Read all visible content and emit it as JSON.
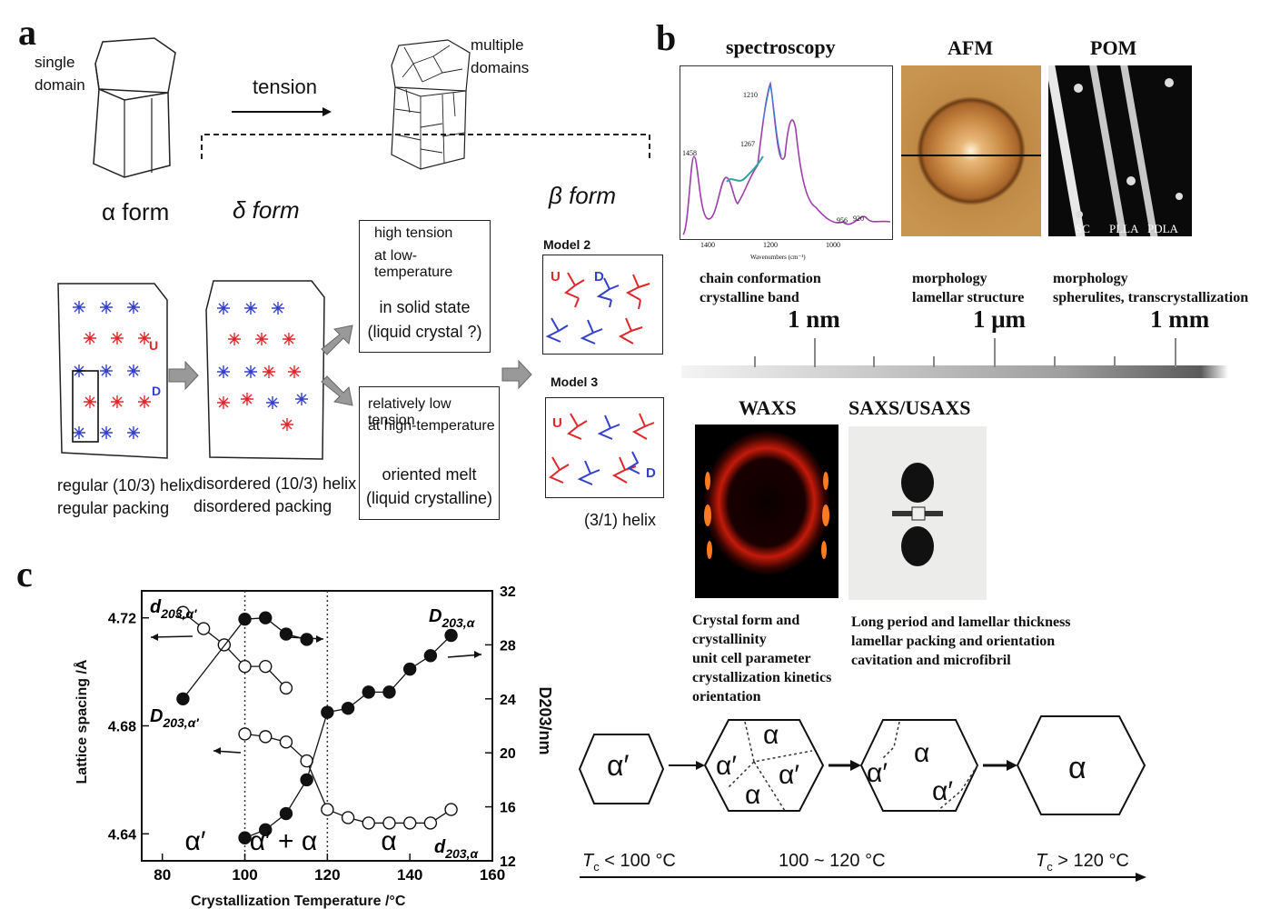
{
  "panel_a": {
    "letter": "a",
    "single_domain": [
      "single",
      "domain"
    ],
    "multiple_domains": [
      "multiple",
      "domains"
    ],
    "tension": "tension",
    "alpha_form": "α form",
    "delta_form": "δ form",
    "beta_form": "β form",
    "high_tension": {
      "line1": "high tension",
      "line2": "at low-temperature",
      "line3": "in solid state",
      "line4": "(liquid crystal ?)"
    },
    "low_tension": {
      "line1": "relatively low tension",
      "line2": "at high-temperature",
      "line3": "oriented melt",
      "line4": "(liquid crystalline)"
    },
    "model2": "Model 2",
    "model3": "Model 3",
    "label_U": "U",
    "label_D": "D",
    "regular": {
      "line1": "regular (10/3) helix",
      "line2": "regular packing"
    },
    "disordered": {
      "line1": "disordered (10/3) helix",
      "line2": "disordered packing"
    },
    "helix31": "(3/1) helix",
    "colors": {
      "red": "#e0262b",
      "blue": "#3340c8"
    }
  },
  "panel_b": {
    "letter": "b",
    "spectroscopy": "spectroscopy",
    "afm": "AFM",
    "pom": "POM",
    "spectrum_peaks": [
      "1458",
      "1210",
      "1267",
      "956",
      "920"
    ],
    "spectrum_ticks": [
      "1400",
      "1200",
      "1000"
    ],
    "spectrum_xlabel": "Wavenumbers (cm⁻¹)",
    "pom_labels": [
      "SC",
      "PLLA",
      "PDLA"
    ],
    "spec_desc": [
      "chain conformation",
      "crystalline band"
    ],
    "afm_desc": [
      "morphology",
      "lamellar structure"
    ],
    "pom_desc": [
      "morphology",
      "spherulites, transcrystallization"
    ],
    "scale": [
      "1 nm",
      "1 μm",
      "1 mm"
    ],
    "waxs": "WAXS",
    "saxs": "SAXS/USAXS",
    "waxs_desc": [
      "Crystal form and",
      "crystallinity",
      "unit cell parameter",
      "crystallization kinetics",
      "orientation"
    ],
    "saxs_desc": [
      "Long period and lamellar thickness",
      "lamellar packing and orientation",
      "cavitation and microfibril"
    ],
    "hex_labels": {
      "h1": "α′",
      "h2a": "α",
      "h2b": "α′",
      "h2c": "α′",
      "h2d": "α",
      "h3a": "α",
      "h3b": "α′",
      "h3c": "α′",
      "h4": "α"
    },
    "temp_left": "T꜀ < 100 °C",
    "temp_left_parts": [
      "T",
      "c",
      " < 100 °C"
    ],
    "temp_mid": "100 ~ 120 °C",
    "temp_right_parts": [
      "T",
      "c",
      " > 120 °C"
    ]
  },
  "panel_c": {
    "letter": "c",
    "chart_data": {
      "type": "scatter",
      "xlabel": "Crystallization Temperature /°C",
      "ylabel_left": "Lattice spacing /Å",
      "ylabel_right": "D203/nm",
      "xlim": [
        75,
        160
      ],
      "ylim_left": [
        4.63,
        4.73
      ],
      "ylim_right": [
        12,
        32
      ],
      "x_ticks": [
        "80",
        "100",
        "120",
        "140",
        "160"
      ],
      "y_ticks_left": [
        "4.64",
        "4.68",
        "4.72"
      ],
      "y_ticks_right": [
        "12",
        "16",
        "20",
        "24",
        "28",
        "32"
      ],
      "region_labels": [
        "α′",
        "α′ + α",
        "α"
      ],
      "series": [
        {
          "name": "d203,α′",
          "axis": "left",
          "marker": "open",
          "x": [
            85,
            90,
            95,
            100,
            105,
            110
          ],
          "y": [
            4.722,
            4.716,
            4.71,
            4.702,
            4.702,
            4.694
          ]
        },
        {
          "name": "d203,α",
          "axis": "left",
          "marker": "open",
          "x": [
            100,
            105,
            110,
            115,
            120,
            125,
            130,
            135,
            140,
            145,
            150
          ],
          "y": [
            4.677,
            4.676,
            4.674,
            4.667,
            4.649,
            4.646,
            4.644,
            4.644,
            4.644,
            4.644,
            4.649
          ]
        },
        {
          "name": "D203,α′",
          "axis": "right",
          "marker": "filled",
          "x": [
            85,
            100,
            105,
            110,
            115
          ],
          "y": [
            24,
            29.9,
            30,
            28.8,
            28.4
          ]
        },
        {
          "name": "D203,α",
          "axis": "right",
          "marker": "filled",
          "x": [
            100,
            105,
            110,
            115,
            120,
            125,
            130,
            135,
            140,
            145,
            150
          ],
          "y": [
            13.7,
            14.3,
            15.5,
            18,
            23,
            23.3,
            24.5,
            24.5,
            26.2,
            27.2,
            28.7
          ]
        }
      ],
      "series_labels": [
        {
          "main": "d",
          "sub": "203,α′"
        },
        {
          "main": "D",
          "sub": "203,α′"
        },
        {
          "main": "D",
          "sub": "203,α"
        },
        {
          "main": "d",
          "sub": "203,α"
        }
      ],
      "vlines": [
        100,
        120
      ],
      "grid": false
    }
  }
}
